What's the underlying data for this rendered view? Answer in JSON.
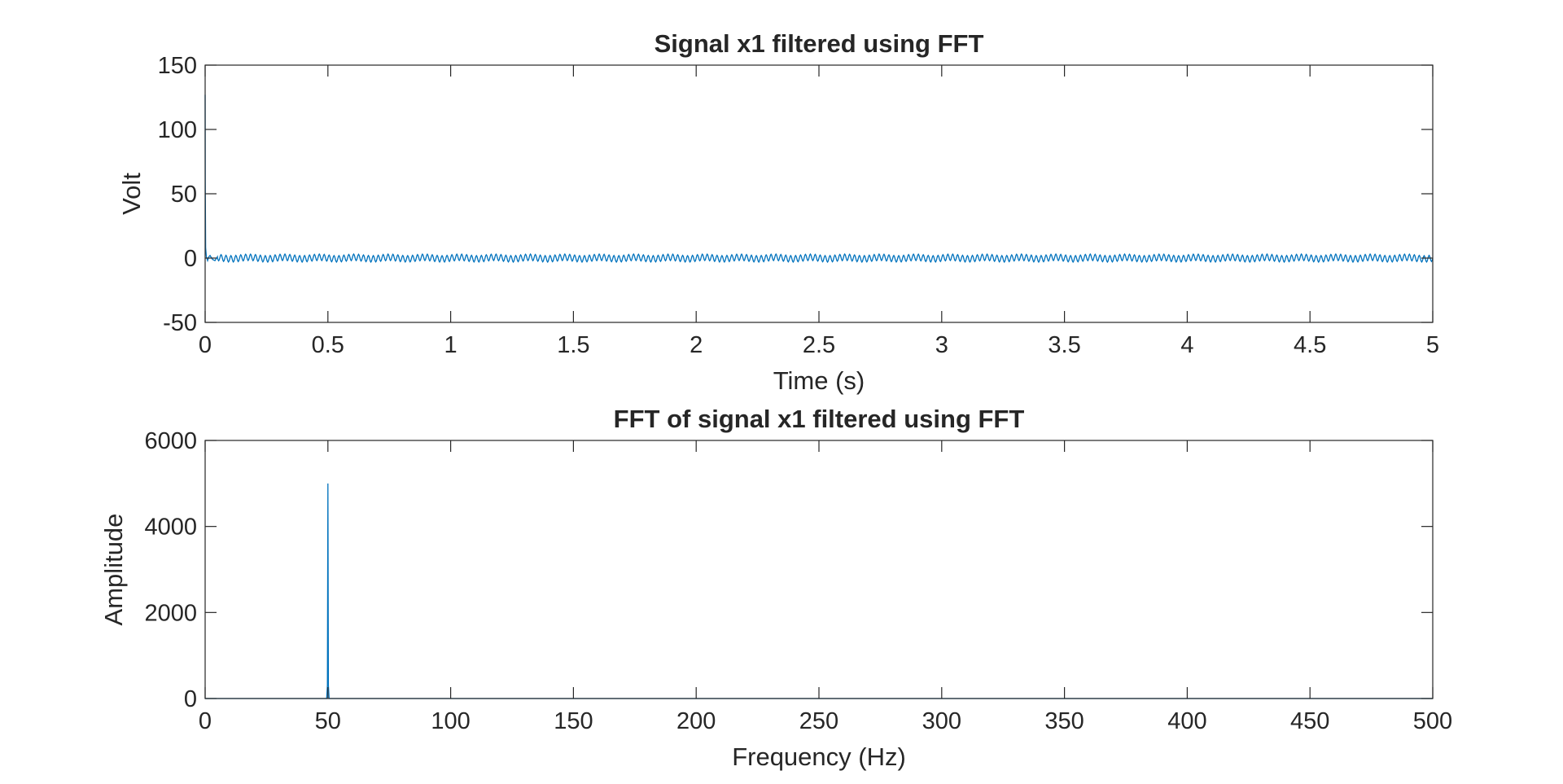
{
  "chart_data": [
    {
      "type": "line",
      "title": "Signal x1 filtered using FFT",
      "xlabel": "Time (s)",
      "ylabel": "Volt",
      "xlim": [
        0,
        5
      ],
      "ylim": [
        -50,
        150
      ],
      "x_ticks": [
        "0",
        "0.5",
        "1",
        "1.5",
        "2",
        "2.5",
        "3",
        "3.5",
        "4",
        "4.5",
        "5"
      ],
      "y_ticks": [
        "-50",
        "0",
        "50",
        "100",
        "150"
      ],
      "grid": false,
      "line_color": "#0072BD",
      "series": [
        {
          "x": [
            0,
            0.0005,
            0.002,
            0.005,
            0.01,
            0.015,
            0.02,
            0.03,
            0.04,
            0.05
          ],
          "y": [
            127,
            60,
            8,
            1,
            -2,
            1,
            2,
            -1,
            -2,
            1
          ]
        }
      ],
      "signal_oscillation": {
        "x_start": 0.05,
        "x_end": 5,
        "amplitude": 2.5,
        "frequency_hz": 50
      }
    },
    {
      "type": "line",
      "title": "FFT of signal x1 filtered using FFT",
      "xlabel": "Frequency (Hz)",
      "ylabel": "Amplitude",
      "xlim": [
        0,
        500
      ],
      "ylim": [
        0,
        6000
      ],
      "x_ticks": [
        "0",
        "50",
        "100",
        "150",
        "200",
        "250",
        "300",
        "350",
        "400",
        "450",
        "500"
      ],
      "y_ticks": [
        "0",
        "2000",
        "4000",
        "6000"
      ],
      "grid": false,
      "line_color": "#0072BD",
      "series": [
        {
          "x": [
            0,
            49.5,
            49.8,
            50,
            50.2,
            50.5,
            500
          ],
          "y": [
            0,
            0,
            300,
            5000,
            300,
            0,
            0
          ]
        }
      ]
    }
  ]
}
